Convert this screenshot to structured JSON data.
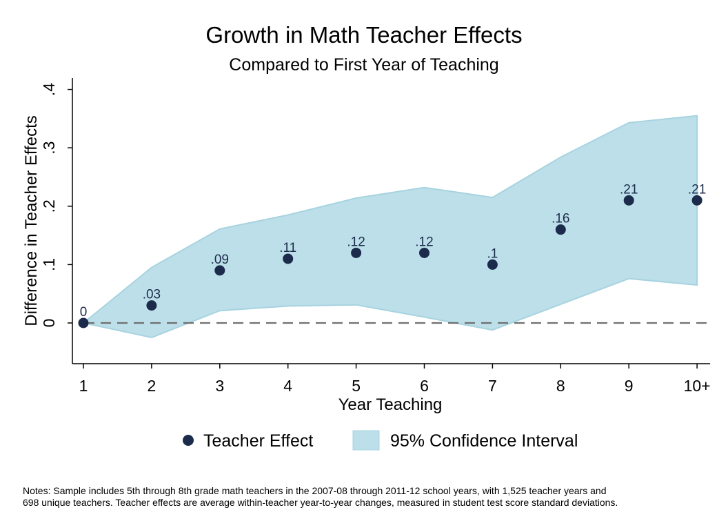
{
  "chart_data": {
    "type": "scatter",
    "title": "Growth in Math Teacher Effects",
    "subtitle": "Compared to First Year of Teaching",
    "xlabel": "Year Teaching",
    "ylabel": "Difference in Teacher Effects",
    "categories": [
      "1",
      "2",
      "3",
      "4",
      "5",
      "6",
      "7",
      "8",
      "9",
      "10+"
    ],
    "y_ticks": [
      0,
      0.1,
      0.2,
      0.3,
      0.4
    ],
    "y_tick_labels": [
      "0",
      ".1",
      ".2",
      ".3",
      ".4"
    ],
    "ylim": [
      -0.07,
      0.42
    ],
    "reference_line": 0,
    "series": [
      {
        "name": "Teacher Effect",
        "type": "scatter",
        "values": [
          0,
          0.03,
          0.09,
          0.11,
          0.12,
          0.12,
          0.1,
          0.16,
          0.21,
          0.21
        ],
        "labels": [
          "0",
          ".03",
          ".09",
          ".11",
          ".12",
          ".12",
          ".1",
          ".16",
          ".21",
          ".21"
        ],
        "color": "#1c2b4b"
      },
      {
        "name": "95% Confidence Interval",
        "type": "area",
        "lower": [
          0,
          -0.025,
          0.021,
          0.029,
          0.031,
          0.01,
          -0.012,
          0.032,
          0.076,
          0.065
        ],
        "upper": [
          0,
          0.095,
          0.161,
          0.185,
          0.214,
          0.232,
          0.215,
          0.284,
          0.343,
          0.355
        ],
        "color": "#bcdfe9",
        "edge_color": "#a7d3e0"
      }
    ],
    "legend": {
      "position": "bottom",
      "items": [
        "Teacher Effect",
        "95% Confidence Interval"
      ]
    },
    "grid": false
  },
  "notes": {
    "line1": "Notes: Sample includes 5th through 8th grade math teachers in the 2007-08 through 2011-12 school years, with 1,525 teacher years and",
    "line2": "698 unique teachers. Teacher effects are average within-teacher year-to-year changes, measured in student test score standard deviations."
  }
}
